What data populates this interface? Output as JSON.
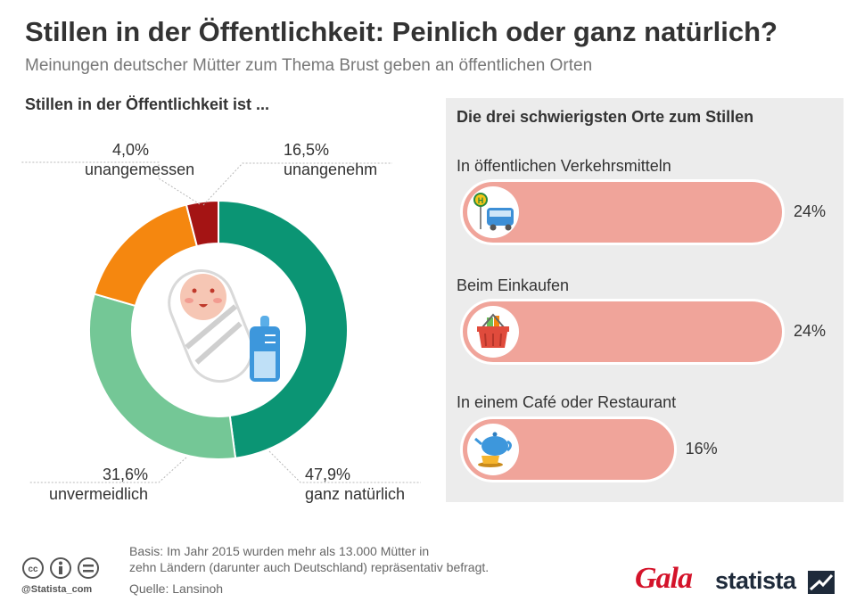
{
  "title": "Stillen in der Öffentlichkeit: Peinlich oder ganz natürlich?",
  "subtitle": "Meinungen deutscher Mütter zum Thema Brust geben an öffentlichen Orten",
  "colors": {
    "ganz_natuerlich": "#0b9574",
    "unvermeidlich": "#74c796",
    "unangenehm": "#f5870f",
    "unangemessen": "#a41414",
    "bar": "#f0a49a",
    "panel": "#ececec"
  },
  "chart_data": [
    {
      "type": "pie",
      "title": "Stillen in der Öffentlichkeit ist ...",
      "slices": [
        {
          "label": "ganz natürlich",
          "value": 47.9,
          "display": "47,9%"
        },
        {
          "label": "unvermeidlich",
          "value": 31.6,
          "display": "31,6%"
        },
        {
          "label": "unangenehm",
          "value": 16.5,
          "display": "16,5%"
        },
        {
          "label": "unangemessen",
          "value": 4.0,
          "display": "4,0%"
        }
      ]
    },
    {
      "type": "bar",
      "title": "Die drei schwierigsten Orte zum Stillen",
      "categories": [
        "In öffentlichen Verkehrsmitteln",
        "Beim Einkaufen",
        "In einem Café oder Restaurant"
      ],
      "values": [
        24,
        24,
        16
      ],
      "value_labels": [
        "24%",
        "24%",
        "16%"
      ],
      "icons": [
        "bus-stop-icon",
        "shopping-basket-icon",
        "teapot-cup-icon"
      ],
      "xlim": [
        0,
        24
      ]
    }
  ],
  "footer": {
    "basis_line1": "Basis: Im Jahr 2015 wurden mehr als 13.000 Mütter in",
    "basis_line2": "zehn Ländern (darunter auch Deutschland) repräsentativ befragt.",
    "source": "Quelle: Lansinoh",
    "handle": "@Statista_com",
    "gala": "Gala",
    "statista": "statista"
  }
}
